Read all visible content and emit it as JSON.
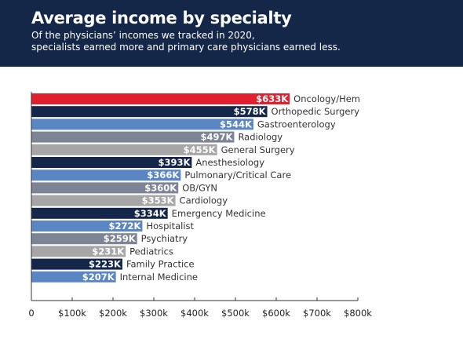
{
  "header": {
    "title": "Average income by specialty",
    "subtitle_lines": [
      "Of the physicians’ incomes we tracked in 2020,",
      "specialists earned more and primary care physicians earned less."
    ]
  },
  "colors": {
    "header_bg": "#152748",
    "highlight": "#e0202e",
    "navy": "#14274a",
    "blue": "#5b86c4",
    "slate": "#7d8496",
    "gray": "#a6a6a6"
  },
  "chart_data": {
    "type": "bar",
    "orientation": "horizontal",
    "title": "Average income by specialty",
    "subtitle": "Of the physicians’ incomes we tracked in 2020, specialists earned more and primary care physicians earned less.",
    "xlim": [
      0,
      800
    ],
    "x_unit": "thousand USD",
    "x_ticks": [
      "0",
      "$100k",
      "$200k",
      "$300k",
      "$400k",
      "$500k",
      "$600k",
      "$700k",
      "$800k"
    ],
    "x_tick_values": [
      0,
      100,
      200,
      300,
      400,
      500,
      600,
      700,
      800
    ],
    "grid": false,
    "categories": [
      "Oncology/Hem",
      "Orthopedic Surgery",
      "Gastroenterology",
      "Radiology",
      "General Surgery",
      "Anesthesiology",
      "Pulmonary/Critical Care",
      "OB/GYN",
      "Cardiology",
      "Emergency Medicine",
      "Hospitalist",
      "Psychiatry",
      "Pediatrics",
      "Family Practice",
      "Internal Medicine"
    ],
    "values": [
      633,
      578,
      544,
      497,
      455,
      393,
      366,
      360,
      353,
      334,
      272,
      259,
      231,
      223,
      207
    ],
    "value_labels": [
      "$633K",
      "$578K",
      "$544K",
      "$497K",
      "$455K",
      "$393K",
      "$366K",
      "$360K",
      "$353K",
      "$334K",
      "$272K",
      "$259K",
      "$231K",
      "$223K",
      "$207K"
    ],
    "bar_colors": [
      "#e0202e",
      "#14274a",
      "#5b86c4",
      "#7d8496",
      "#a6a6a6",
      "#14274a",
      "#5b86c4",
      "#7d8496",
      "#a6a6a6",
      "#14274a",
      "#5b86c4",
      "#7d8496",
      "#a6a6a6",
      "#14274a",
      "#5b86c4"
    ]
  }
}
